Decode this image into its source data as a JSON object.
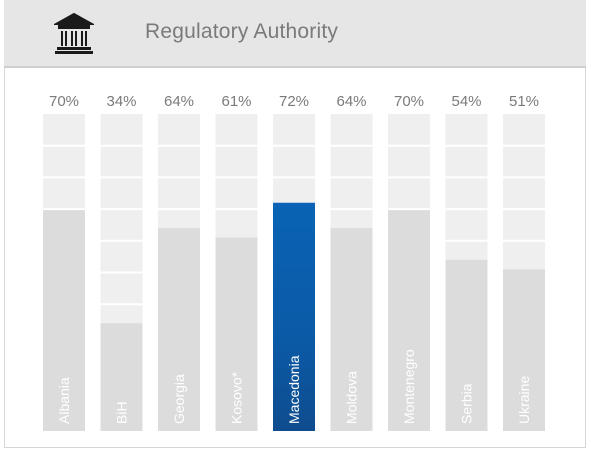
{
  "header": {
    "title": "Regulatory Authority",
    "icon": "government-building-icon"
  },
  "colors": {
    "track": "#efefef",
    "bar": "#dcdcdc",
    "highlight_top": "#0a63b4",
    "highlight_bottom": "#0e4c8e",
    "label": "#ffffff",
    "value_text": "#7a7a7a",
    "header_bg": "#e6e6e6"
  },
  "chart_data": {
    "type": "bar",
    "categories": [
      "Albania",
      "BiH",
      "Georgia",
      "Kosovo*",
      "Macedonia",
      "Moldova",
      "Montenegro",
      "Serbia",
      "Ukraine"
    ],
    "values": [
      70,
      34,
      64,
      61,
      72,
      64,
      70,
      54,
      51
    ],
    "value_labels": [
      "70%",
      "34%",
      "64%",
      "61%",
      "72%",
      "64%",
      "70%",
      "54%",
      "51%"
    ],
    "highlight": "Macedonia",
    "ylim": [
      0,
      100
    ],
    "grid": true,
    "title": "Regulatory Authority"
  }
}
